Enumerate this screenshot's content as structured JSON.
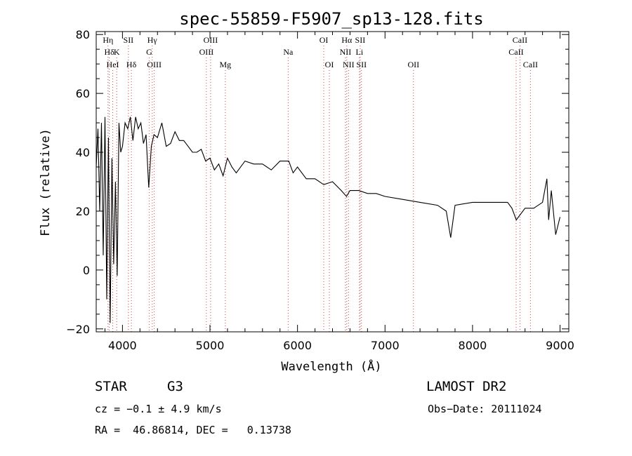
{
  "chart_data": {
    "type": "line",
    "title": "spec-55859-F5907_sp13-128.fits",
    "xlabel": "Wavelength (Å)",
    "ylabel": "Flux (relative)",
    "xlim": [
      3700,
      9100
    ],
    "ylim": [
      -21,
      81
    ],
    "x_ticks": [
      4000,
      5000,
      6000,
      7000,
      8000,
      9000
    ],
    "y_ticks": [
      -20,
      0,
      20,
      40,
      60,
      80
    ],
    "grid": false,
    "series": [
      {
        "x": [
          3700,
          3720,
          3740,
          3760,
          3780,
          3800,
          3820,
          3840,
          3860,
          3880,
          3900,
          3920,
          3940,
          3960,
          3980,
          4000,
          4030,
          4060,
          4090,
          4120,
          4150,
          4180,
          4210,
          4240,
          4270,
          4300,
          4330,
          4360,
          4400,
          4450,
          4500,
          4550,
          4600,
          4650,
          4700,
          4750,
          4800,
          4850,
          4900,
          4950,
          5000,
          5050,
          5100,
          5150,
          5200,
          5250,
          5300,
          5400,
          5500,
          5600,
          5700,
          5800,
          5900,
          5950,
          6000,
          6100,
          6200,
          6300,
          6400,
          6500,
          6560,
          6600,
          6700,
          6800,
          6900,
          7000,
          7200,
          7400,
          7600,
          7700,
          7750,
          7800,
          8000,
          8200,
          8400,
          8450,
          8500,
          8600,
          8700,
          8800,
          8850,
          8870,
          8900,
          8950,
          9000
        ],
        "y": [
          35,
          48,
          20,
          50,
          5,
          52,
          -10,
          45,
          -18,
          38,
          2,
          30,
          -2,
          50,
          40,
          42,
          50,
          48,
          52,
          44,
          52,
          48,
          50,
          43,
          46,
          28,
          42,
          46,
          45,
          50,
          42,
          43,
          47,
          44,
          44,
          42,
          40,
          40,
          41,
          37,
          38,
          34,
          36,
          32,
          38,
          35,
          33,
          37,
          36,
          36,
          34,
          37,
          37,
          33,
          35,
          31,
          31,
          29,
          30,
          27,
          25,
          27,
          27,
          26,
          26,
          25,
          24,
          23,
          22,
          20,
          11,
          22,
          23,
          23,
          23,
          21,
          17,
          21,
          21,
          23,
          31,
          17,
          27,
          12,
          18
        ]
      }
    ],
    "spectral_lines": [
      {
        "label": "Hη",
        "x": 3835,
        "row": 0
      },
      {
        "label": "Hδ",
        "x": 3850,
        "row": 1
      },
      {
        "label": "K",
        "x": 3934,
        "row": 1
      },
      {
        "label": "SII",
        "x": 4068,
        "row": 0
      },
      {
        "label": "HeI",
        "x": 3889,
        "row": 2
      },
      {
        "label": "Hδ",
        "x": 4102,
        "row": 2
      },
      {
        "label": "Hγ",
        "x": 4340,
        "row": 0
      },
      {
        "label": "G",
        "x": 4305,
        "row": 1
      },
      {
        "label": "OIII",
        "x": 4363,
        "row": 2
      },
      {
        "label": "OIII",
        "x": 5007,
        "row": 0
      },
      {
        "label": "OIII",
        "x": 4959,
        "row": 1
      },
      {
        "label": "Mg",
        "x": 5175,
        "row": 2
      },
      {
        "label": "Na",
        "x": 5893,
        "row": 1
      },
      {
        "label": "OI",
        "x": 6300,
        "row": 0
      },
      {
        "label": "OI",
        "x": 6364,
        "row": 2
      },
      {
        "label": "Hα",
        "x": 6563,
        "row": 0
      },
      {
        "label": "SII",
        "x": 6716,
        "row": 0
      },
      {
        "label": "NII",
        "x": 6548,
        "row": 1
      },
      {
        "label": "Li",
        "x": 6708,
        "row": 1
      },
      {
        "label": "NII",
        "x": 6583,
        "row": 2
      },
      {
        "label": "SII",
        "x": 6731,
        "row": 2
      },
      {
        "label": "OII",
        "x": 7325,
        "row": 2
      },
      {
        "label": "CaII",
        "x": 8542,
        "row": 0
      },
      {
        "label": "CaII",
        "x": 8498,
        "row": 1
      },
      {
        "label": "CaII",
        "x": 8662,
        "row": 2
      }
    ]
  },
  "info": {
    "object_class": "STAR",
    "subclass": "G3",
    "survey": "LAMOST DR2",
    "cz": "cz = −0.1 ± 4.9 km/s",
    "obs_date": "Obs−Date: 20111024",
    "coords": "RA =  46.86814, DEC =   0.13738"
  }
}
